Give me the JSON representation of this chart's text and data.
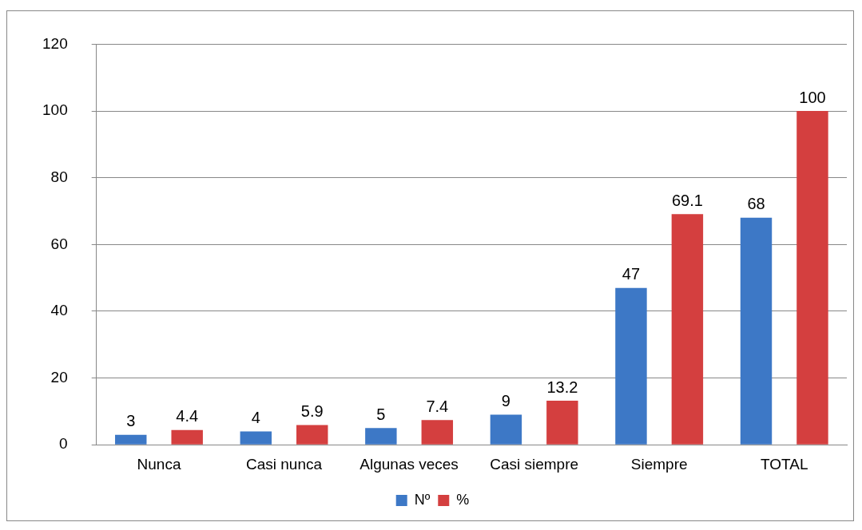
{
  "chart_data": {
    "type": "bar",
    "categories": [
      "Nunca",
      "Casi nunca",
      "Algunas veces",
      "Casi siempre",
      "Siempre",
      "TOTAL"
    ],
    "series": [
      {
        "name": "Nº",
        "color": "#3d78c6",
        "values": [
          3,
          4,
          5,
          9,
          47,
          68
        ]
      },
      {
        "name": "%",
        "color": "#d43f3f",
        "values": [
          4.4,
          5.9,
          7.4,
          13.2,
          69.1,
          100
        ]
      }
    ],
    "ylim": [
      0,
      120
    ],
    "yticks": [
      0,
      20,
      40,
      60,
      80,
      100,
      120
    ],
    "grid": "y",
    "legend": "bottom",
    "data_labels": true
  }
}
